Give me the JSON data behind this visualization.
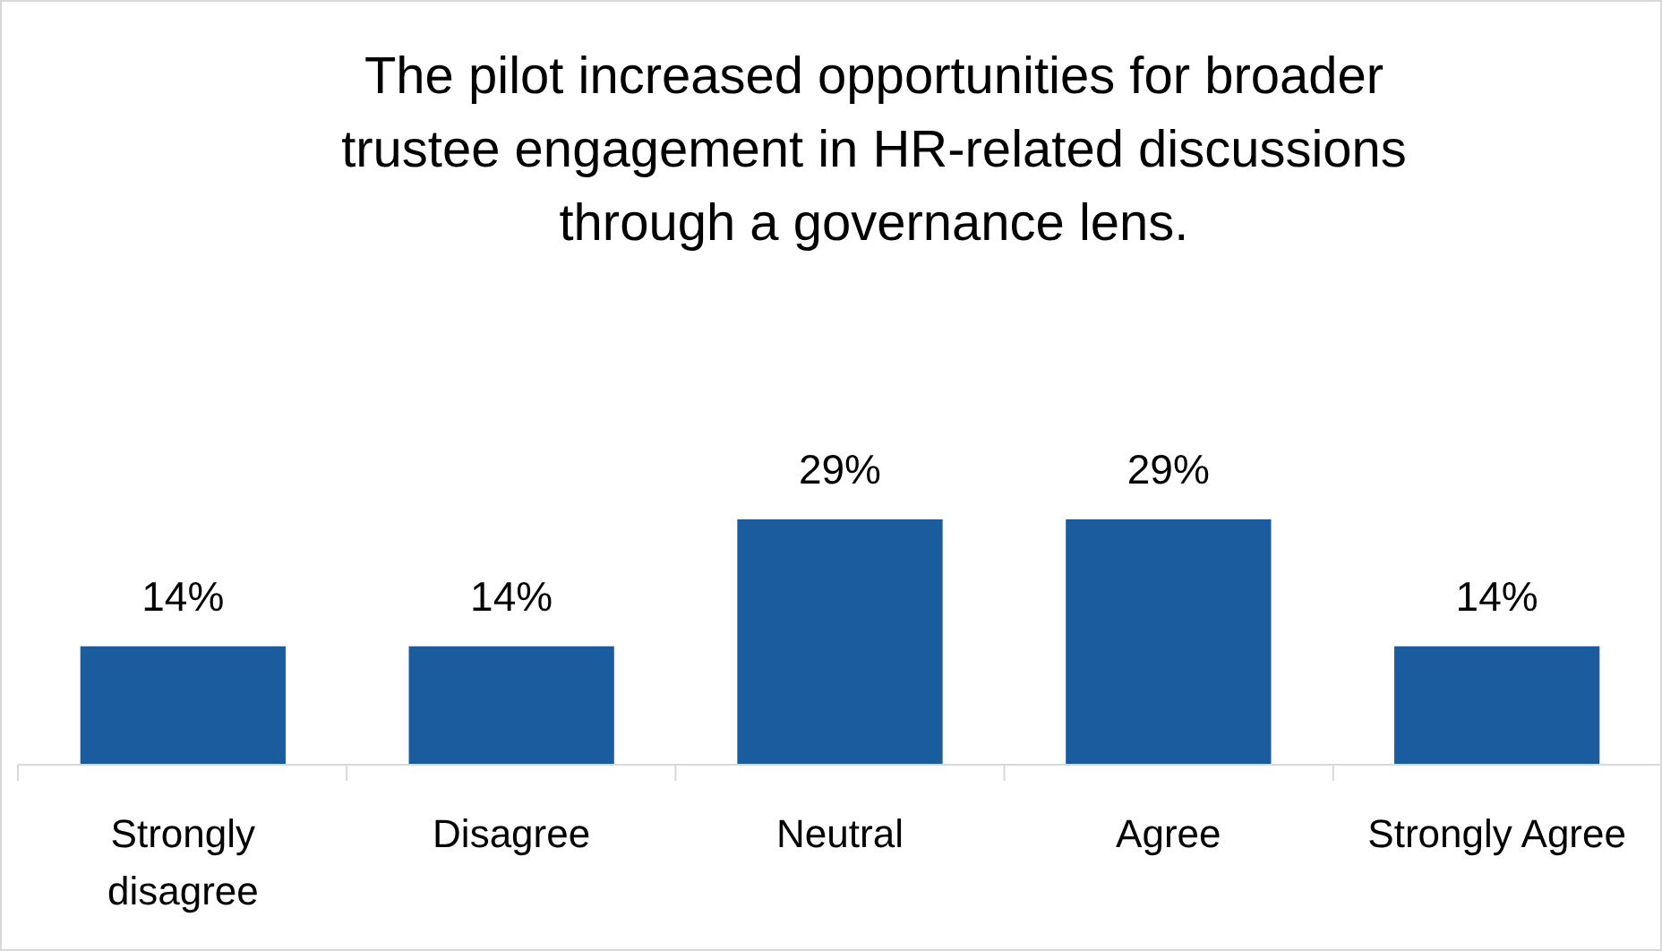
{
  "chart_data": {
    "type": "bar",
    "title": "The pilot increased opportunities for broader trustee engagement in HR-related discussions through a governance lens.",
    "categories": [
      "Strongly disagree",
      "Disagree",
      "Neutral",
      "Agree",
      "Strongly Agree"
    ],
    "values": [
      14,
      14,
      29,
      29,
      14
    ],
    "value_labels": [
      "14%",
      "14%",
      "29%",
      "29%",
      "14%"
    ],
    "color": "#1a5c9e"
  }
}
